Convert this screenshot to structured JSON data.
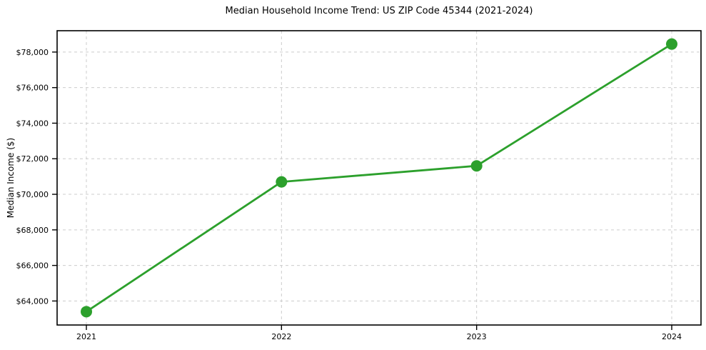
{
  "chart_data": {
    "type": "line",
    "title": "Median Household Income Trend: US ZIP Code 45344 (2021-2024)",
    "xlabel": "",
    "ylabel": "Median Income ($)",
    "x": [
      2021,
      2022,
      2023,
      2024
    ],
    "y": [
      63400,
      70700,
      71600,
      78450
    ],
    "xlim": [
      2020.85,
      2024.15
    ],
    "ylim": [
      62650,
      79200
    ],
    "xticks": [
      2021,
      2022,
      2023,
      2024
    ],
    "xtick_labels": [
      "2021",
      "2022",
      "2023",
      "2024"
    ],
    "yticks": [
      64000,
      66000,
      68000,
      70000,
      72000,
      74000,
      76000,
      78000
    ],
    "ytick_labels": [
      "$64,000",
      "$66,000",
      "$68,000",
      "$70,000",
      "$72,000",
      "$74,000",
      "$76,000",
      "$78,000"
    ],
    "line_color": "#2ca02c",
    "marker_color": "#2ca02c",
    "marker": "o",
    "grid": true,
    "grid_style": "dashed",
    "grid_color": "#cccccc",
    "spine_color": "#000000",
    "tick_label_color": "#000000",
    "legend": false
  }
}
